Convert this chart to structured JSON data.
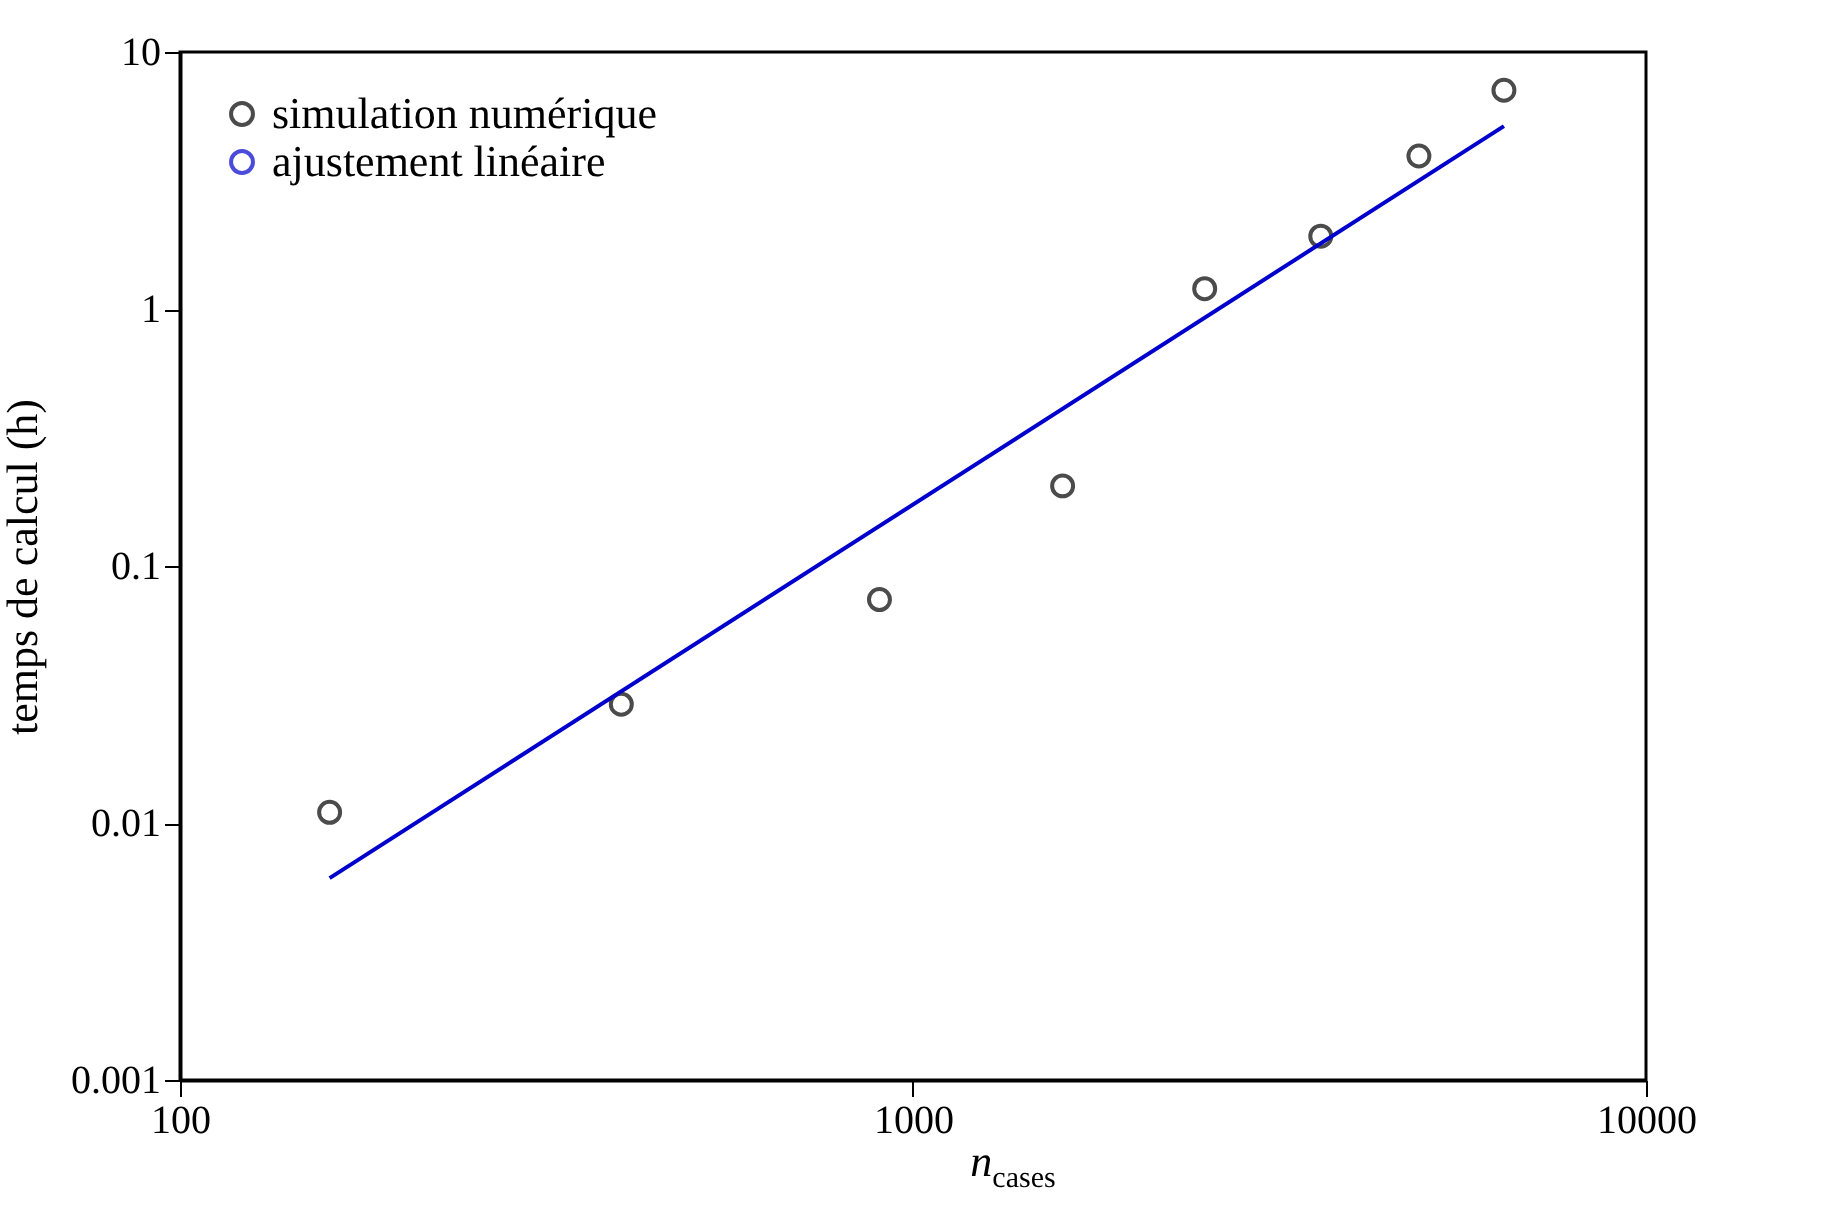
{
  "chart_data": {
    "type": "scatter",
    "xlabel": "n$_{cases}$",
    "ylabel": "temps de calcul (h)",
    "log": "xy",
    "grid": false,
    "legend": "top left",
    "line_style": "solid",
    "xlim": [
      100,
      10000
    ],
    "xticks": [
      100,
      1000,
      10000
    ],
    "ylim": [
      0.001,
      10
    ],
    "yticks": [
      0.001,
      0.01,
      0.1,
      1,
      10
    ],
    "series": [
      {
        "name": "simulation numérique",
        "marker": "circle",
        "color": "#000000",
        "x": [
          160,
          400,
          900,
          1600,
          2500,
          3600,
          4900,
          6400
        ],
        "values": [
          0.011,
          0.029,
          0.074,
          0.205,
          1.2,
          1.92,
          3.94,
          7.1
        ]
      },
      {
        "name": "ajustement linéaire",
        "type": "line",
        "color": "#0000cc",
        "x": [
          160,
          6400
        ],
        "values": [
          0.0061,
          5.15
        ]
      }
    ]
  }
}
